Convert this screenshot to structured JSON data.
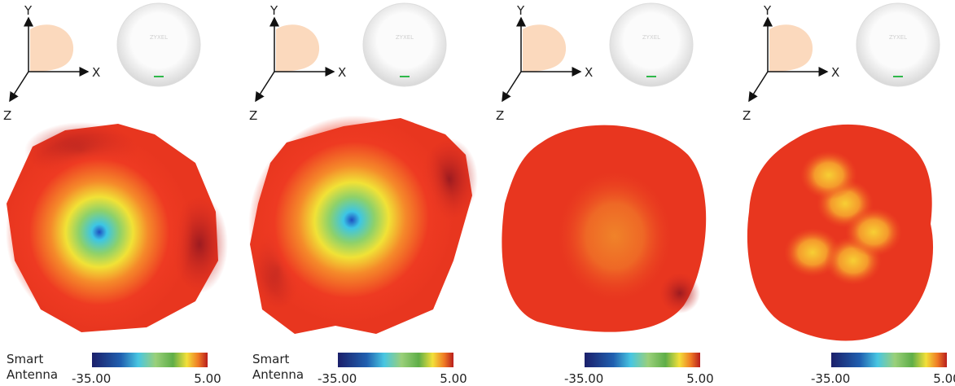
{
  "panels": [
    {
      "axes": {
        "y": "Y",
        "x": "X",
        "z": "Z"
      },
      "device": "ZYXEL",
      "label": [
        "Smart",
        "Antenna"
      ],
      "colorbar": {
        "min": "-35.00",
        "max": "5.00"
      }
    },
    {
      "axes": {
        "y": "Y",
        "x": "X",
        "z": "Z"
      },
      "device": "ZYXEL",
      "label": [
        "Smart",
        "Antenna"
      ],
      "colorbar": {
        "min": "-35.00",
        "max": "5.00"
      }
    },
    {
      "axes": {
        "y": "Y",
        "x": "X",
        "z": "Z"
      },
      "device": "ZYXEL",
      "colorbar": {
        "min": "-35.00",
        "max": "5.00"
      }
    },
    {
      "axes": {
        "y": "Y",
        "x": "X",
        "z": "Z"
      },
      "device": "ZYXEL",
      "colorbar": {
        "min": "-35.00",
        "max": "5.00"
      }
    }
  ]
}
